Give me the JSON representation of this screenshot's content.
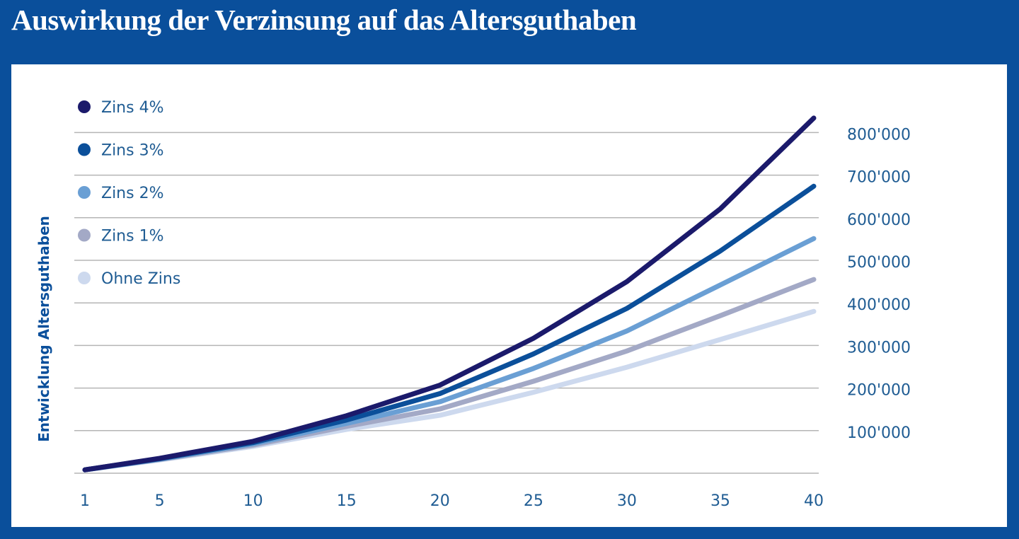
{
  "chart_data": {
    "type": "line",
    "title": "Auswirkung der Verzinsung auf das Altersguthaben",
    "xlabel": "",
    "ylabel": "Entwicklung Altersguthaben",
    "x": [
      1,
      5,
      10,
      15,
      20,
      25,
      30,
      35,
      40
    ],
    "x_ticks": [
      "1",
      "5",
      "10",
      "15",
      "20",
      "25",
      "30",
      "35",
      "40"
    ],
    "y_ticks": [
      {
        "value": 100000,
        "label": "100'000"
      },
      {
        "value": 200000,
        "label": "200'000"
      },
      {
        "value": 300000,
        "label": "300'000"
      },
      {
        "value": 400000,
        "label": "400'000"
      },
      {
        "value": 500000,
        "label": "500'000"
      },
      {
        "value": 600000,
        "label": "600'000"
      },
      {
        "value": 700000,
        "label": "700'000"
      },
      {
        "value": 800000,
        "label": "800'000"
      }
    ],
    "ylim": [
      0,
      830000
    ],
    "xlim": [
      1,
      40
    ],
    "grid": true,
    "legend_position": "top-left",
    "y_axis_side": "right",
    "series": [
      {
        "name": "Zins 4%",
        "color": "#1b1a6b",
        "values": [
          8000,
          35000,
          75000,
          135000,
          207000,
          317000,
          450000,
          621000,
          834000
        ]
      },
      {
        "name": "Zins 3%",
        "color": "#0b4f9a",
        "values": [
          8000,
          34000,
          72000,
          125000,
          187000,
          280000,
          387000,
          522000,
          674000
        ]
      },
      {
        "name": "Zins 2%",
        "color": "#6a9fd4",
        "values": [
          8000,
          33000,
          69000,
          117000,
          168000,
          246000,
          334000,
          442000,
          551000
        ]
      },
      {
        "name": "Zins 1%",
        "color": "#a3a9c6",
        "values": [
          8000,
          32000,
          66000,
          110000,
          151000,
          216000,
          287000,
          370000,
          455000
        ]
      },
      {
        "name": "Ohne Zins",
        "color": "#cdd9ee",
        "values": [
          8000,
          31000,
          63000,
          103000,
          136000,
          190000,
          249000,
          314000,
          380000
        ]
      }
    ]
  }
}
